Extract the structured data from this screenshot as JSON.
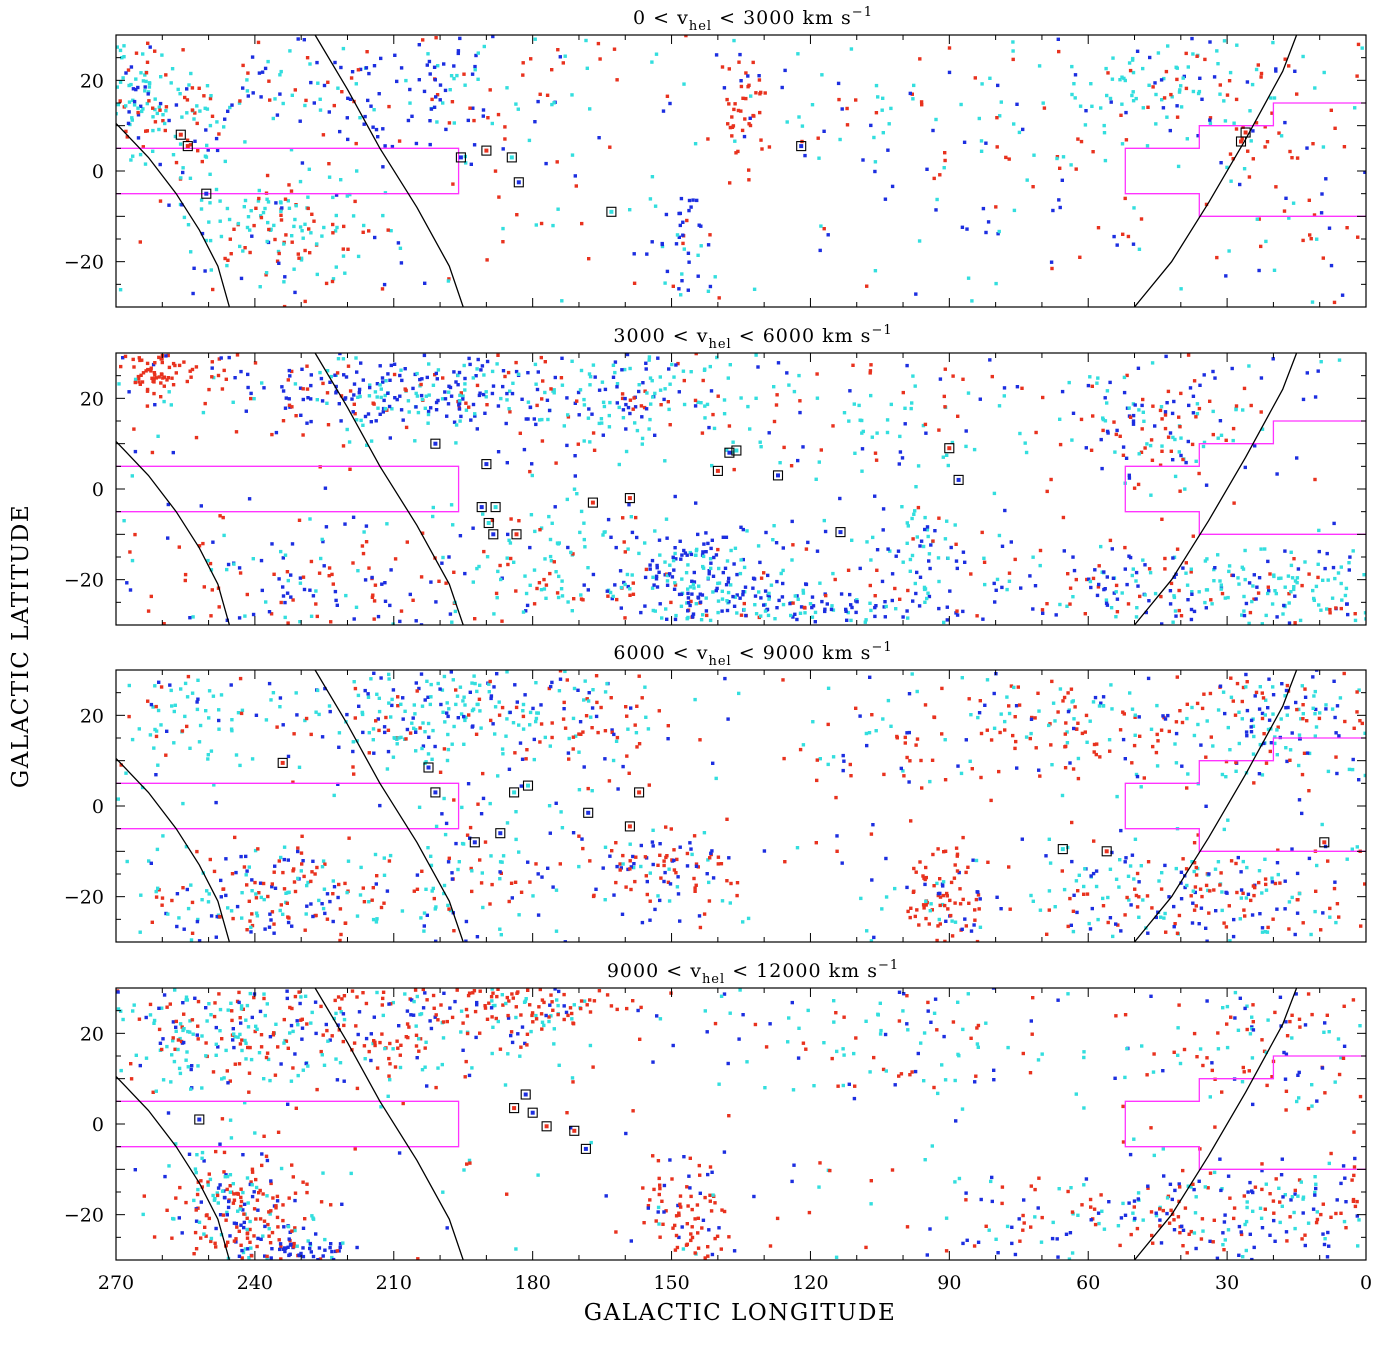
{
  "figure": {
    "xlabel": "GALACTIC LONGITUDE",
    "ylabel": "GALACTIC LATITUDE"
  },
  "colors": {
    "red": "#e8321e",
    "cyan": "#33dede",
    "blue": "#1c2ee0",
    "boundary": "#ff33ff",
    "curve": "#000000",
    "frame": "#000000"
  },
  "chart_data": [
    {
      "type": "scatter",
      "title_prefix": "0 < v",
      "title_sub": "hel",
      "title_suffix": " < 3000 km s",
      "title_sup": "−1",
      "xlim": [
        270,
        0
      ],
      "ylim": [
        -30,
        30
      ],
      "xticks": [
        270,
        240,
        210,
        180,
        150,
        120,
        90,
        60,
        30,
        0
      ],
      "yticks": [
        20,
        0,
        -20
      ],
      "ytick_labels": [
        "20",
        "0",
        "−20"
      ],
      "grid": false,
      "density": "low",
      "clusters": [
        {
          "cx": 265,
          "cy": 16,
          "sx": 5,
          "sy": 6,
          "n": 110,
          "mix": [
            0.25,
            0.6,
            0.15
          ]
        },
        {
          "cx": 252,
          "cy": 12,
          "sx": 5,
          "sy": 8,
          "n": 60,
          "mix": [
            0.3,
            0.5,
            0.2
          ]
        },
        {
          "cx": 232,
          "cy": -13,
          "sx": 10,
          "sy": 7,
          "n": 140,
          "mix": [
            0.35,
            0.55,
            0.1
          ]
        },
        {
          "cx": 225,
          "cy": 18,
          "sx": 12,
          "sy": 6,
          "n": 60,
          "mix": [
            0.15,
            0.35,
            0.5
          ]
        },
        {
          "cx": 200,
          "cy": 20,
          "sx": 12,
          "sy": 8,
          "n": 90,
          "mix": [
            0.1,
            0.3,
            0.6
          ]
        },
        {
          "cx": 134,
          "cy": 12,
          "sx": 3,
          "sy": 7,
          "n": 50,
          "mix": [
            0.85,
            0.05,
            0.1
          ]
        },
        {
          "cx": 147,
          "cy": -16,
          "sx": 4,
          "sy": 8,
          "n": 45,
          "mix": [
            0.05,
            0.35,
            0.6
          ]
        },
        {
          "cx": 45,
          "cy": 18,
          "sx": 14,
          "sy": 6,
          "n": 110,
          "mix": [
            0.15,
            0.75,
            0.1
          ]
        },
        {
          "cx": 20,
          "cy": 5,
          "sx": 12,
          "sy": 14,
          "n": 60,
          "mix": [
            0.7,
            0.15,
            0.15
          ]
        },
        {
          "cx": 100,
          "cy": 14,
          "sx": 15,
          "sy": 6,
          "n": 45,
          "mix": [
            0.3,
            0.6,
            0.1
          ]
        },
        {
          "cx": 75,
          "cy": -5,
          "sx": 20,
          "sy": 12,
          "n": 45,
          "mix": [
            0.35,
            0.25,
            0.4
          ]
        },
        {
          "cx": 180,
          "cy": 8,
          "sx": 12,
          "sy": 14,
          "n": 40,
          "mix": [
            0.45,
            0.35,
            0.2
          ]
        }
      ],
      "background_n": 200,
      "markers": [
        {
          "l": 256,
          "b": 8,
          "c": "red"
        },
        {
          "l": 254.5,
          "b": 5.5,
          "c": "red"
        },
        {
          "l": 250.5,
          "b": -5,
          "c": "blue"
        },
        {
          "l": 195.5,
          "b": 3,
          "c": "blue"
        },
        {
          "l": 190,
          "b": 4.5,
          "c": "red"
        },
        {
          "l": 184.5,
          "b": 3,
          "c": "cyan"
        },
        {
          "l": 183,
          "b": -2.5,
          "c": "blue"
        },
        {
          "l": 163,
          "b": -9,
          "c": "cyan"
        },
        {
          "l": 122,
          "b": 5.5,
          "c": "blue"
        },
        {
          "l": 26,
          "b": 8.5,
          "c": "red"
        },
        {
          "l": 27,
          "b": 6.5,
          "c": "red"
        }
      ]
    },
    {
      "type": "scatter",
      "title_prefix": "3000 < v",
      "title_sub": "hel",
      "title_suffix": " < 6000 km s",
      "title_sup": "−1",
      "xlim": [
        270,
        0
      ],
      "ylim": [
        -30,
        30
      ],
      "xticks": [
        270,
        240,
        210,
        180,
        150,
        120,
        90,
        60,
        30,
        0
      ],
      "yticks": [
        20,
        0,
        -20
      ],
      "ytick_labels": [
        "20",
        "0",
        "−20"
      ],
      "grid": false,
      "density": "high",
      "clusters": [
        {
          "cx": 262,
          "cy": 26,
          "sx": 6,
          "sy": 3,
          "n": 90,
          "mix": [
            0.9,
            0.05,
            0.05
          ]
        },
        {
          "cx": 212,
          "cy": 21,
          "sx": 14,
          "sy": 4,
          "n": 180,
          "mix": [
            0.15,
            0.25,
            0.6
          ]
        },
        {
          "cx": 185,
          "cy": 22,
          "sx": 18,
          "sy": 6,
          "n": 150,
          "mix": [
            0.1,
            0.45,
            0.45
          ]
        },
        {
          "cx": 145,
          "cy": -20,
          "sx": 10,
          "sy": 6,
          "n": 200,
          "mix": [
            0.15,
            0.35,
            0.5
          ]
        },
        {
          "cx": 120,
          "cy": -26,
          "sx": 14,
          "sy": 3,
          "n": 120,
          "mix": [
            0.05,
            0.3,
            0.65
          ]
        },
        {
          "cx": 97,
          "cy": -15,
          "sx": 8,
          "sy": 8,
          "n": 80,
          "mix": [
            0.1,
            0.5,
            0.4
          ]
        },
        {
          "cx": 45,
          "cy": 14,
          "sx": 10,
          "sy": 7,
          "n": 130,
          "mix": [
            0.3,
            0.3,
            0.4
          ]
        },
        {
          "cx": 50,
          "cy": -22,
          "sx": 14,
          "sy": 5,
          "n": 130,
          "mix": [
            0.25,
            0.35,
            0.4
          ]
        },
        {
          "cx": 15,
          "cy": -22,
          "sx": 10,
          "sy": 5,
          "n": 100,
          "mix": [
            0.15,
            0.7,
            0.15
          ]
        },
        {
          "cx": 225,
          "cy": -22,
          "sx": 18,
          "sy": 6,
          "n": 110,
          "mix": [
            0.45,
            0.2,
            0.35
          ]
        },
        {
          "cx": 150,
          "cy": 20,
          "sx": 14,
          "sy": 8,
          "n": 100,
          "mix": [
            0.2,
            0.55,
            0.25
          ]
        },
        {
          "cx": 105,
          "cy": 18,
          "sx": 14,
          "sy": 8,
          "n": 80,
          "mix": [
            0.35,
            0.5,
            0.15
          ]
        },
        {
          "cx": 178,
          "cy": -15,
          "sx": 10,
          "sy": 8,
          "n": 90,
          "mix": [
            0.25,
            0.6,
            0.15
          ]
        }
      ],
      "background_n": 350,
      "markers": [
        {
          "l": 201,
          "b": 10,
          "c": "blue"
        },
        {
          "l": 190,
          "b": 5.5,
          "c": "blue"
        },
        {
          "l": 188,
          "b": -4,
          "c": "cyan"
        },
        {
          "l": 191,
          "b": -4,
          "c": "blue"
        },
        {
          "l": 189.5,
          "b": -7.5,
          "c": "cyan"
        },
        {
          "l": 188.5,
          "b": -10,
          "c": "blue"
        },
        {
          "l": 183.5,
          "b": -10,
          "c": "red"
        },
        {
          "l": 167,
          "b": -3,
          "c": "red"
        },
        {
          "l": 159,
          "b": -2,
          "c": "red"
        },
        {
          "l": 140,
          "b": 4,
          "c": "red"
        },
        {
          "l": 137.5,
          "b": 8,
          "c": "blue"
        },
        {
          "l": 136,
          "b": 8.5,
          "c": "cyan"
        },
        {
          "l": 127,
          "b": 3,
          "c": "blue"
        },
        {
          "l": 113.5,
          "b": -9.5,
          "c": "blue"
        },
        {
          "l": 90,
          "b": 9,
          "c": "red"
        },
        {
          "l": 88,
          "b": 2,
          "c": "blue"
        }
      ]
    },
    {
      "type": "scatter",
      "title_prefix": "6000 < v",
      "title_sub": "hel",
      "title_suffix": " < 9000 km s",
      "title_sup": "−1",
      "xlim": [
        270,
        0
      ],
      "ylim": [
        -30,
        30
      ],
      "xticks": [
        270,
        240,
        210,
        180,
        150,
        120,
        90,
        60,
        30,
        0
      ],
      "yticks": [
        20,
        0,
        -20
      ],
      "ytick_labels": [
        "20",
        "0",
        "−20"
      ],
      "grid": false,
      "density": "high",
      "clusters": [
        {
          "cx": 200,
          "cy": 22,
          "sx": 14,
          "sy": 6,
          "n": 200,
          "mix": [
            0.15,
            0.65,
            0.2
          ]
        },
        {
          "cx": 170,
          "cy": 18,
          "sx": 10,
          "sy": 8,
          "n": 90,
          "mix": [
            0.45,
            0.3,
            0.25
          ]
        },
        {
          "cx": 232,
          "cy": -19,
          "sx": 16,
          "sy": 5,
          "n": 180,
          "mix": [
            0.45,
            0.3,
            0.25
          ]
        },
        {
          "cx": 150,
          "cy": -14,
          "sx": 8,
          "sy": 5,
          "n": 100,
          "mix": [
            0.55,
            0.15,
            0.3
          ]
        },
        {
          "cx": 92,
          "cy": -22,
          "sx": 4,
          "sy": 6,
          "n": 90,
          "mix": [
            0.8,
            0.05,
            0.15
          ]
        },
        {
          "cx": 60,
          "cy": 18,
          "sx": 14,
          "sy": 6,
          "n": 120,
          "mix": [
            0.5,
            0.35,
            0.15
          ]
        },
        {
          "cx": 20,
          "cy": 20,
          "sx": 10,
          "sy": 8,
          "n": 150,
          "mix": [
            0.25,
            0.4,
            0.35
          ]
        },
        {
          "cx": 35,
          "cy": -20,
          "sx": 18,
          "sy": 6,
          "n": 220,
          "mix": [
            0.35,
            0.35,
            0.3
          ]
        },
        {
          "cx": 255,
          "cy": 18,
          "sx": 10,
          "sy": 8,
          "n": 70,
          "mix": [
            0.1,
            0.7,
            0.2
          ]
        },
        {
          "cx": 190,
          "cy": -12,
          "sx": 10,
          "sy": 8,
          "n": 80,
          "mix": [
            0.25,
            0.5,
            0.25
          ]
        },
        {
          "cx": 100,
          "cy": 15,
          "sx": 12,
          "sy": 8,
          "n": 50,
          "mix": [
            0.35,
            0.4,
            0.25
          ]
        }
      ],
      "background_n": 320,
      "markers": [
        {
          "l": 234,
          "b": 9.5,
          "c": "red"
        },
        {
          "l": 202.5,
          "b": 8.5,
          "c": "blue"
        },
        {
          "l": 201,
          "b": 3,
          "c": "blue"
        },
        {
          "l": 181,
          "b": 4.5,
          "c": "cyan"
        },
        {
          "l": 184,
          "b": 3,
          "c": "cyan"
        },
        {
          "l": 168,
          "b": -1.5,
          "c": "blue"
        },
        {
          "l": 157,
          "b": 3,
          "c": "red"
        },
        {
          "l": 159,
          "b": -4.5,
          "c": "red"
        },
        {
          "l": 187,
          "b": -6,
          "c": "blue"
        },
        {
          "l": 192.5,
          "b": -8,
          "c": "blue"
        },
        {
          "l": 65.5,
          "b": -9.5,
          "c": "cyan"
        },
        {
          "l": 56,
          "b": -10,
          "c": "red"
        },
        {
          "l": 9,
          "b": -8,
          "c": "red"
        }
      ]
    },
    {
      "type": "scatter",
      "title_prefix": "9000 < v",
      "title_sub": "hel",
      "title_suffix": " < 12000 km s",
      "title_sup": "−1",
      "xlim": [
        270,
        0
      ],
      "ylim": [
        -30,
        30
      ],
      "xticks": [
        270,
        240,
        210,
        180,
        150,
        120,
        90,
        60,
        30,
        0
      ],
      "yticks": [
        20,
        0,
        -20
      ],
      "ytick_labels": [
        "20",
        "0",
        "−20"
      ],
      "grid": false,
      "density": "high",
      "clusters": [
        {
          "cx": 250,
          "cy": 20,
          "sx": 14,
          "sy": 7,
          "n": 200,
          "mix": [
            0.4,
            0.4,
            0.2
          ]
        },
        {
          "cx": 210,
          "cy": 22,
          "sx": 16,
          "sy": 6,
          "n": 180,
          "mix": [
            0.5,
            0.25,
            0.25
          ]
        },
        {
          "cx": 180,
          "cy": 26,
          "sx": 10,
          "sy": 3,
          "n": 100,
          "mix": [
            0.7,
            0.2,
            0.1
          ]
        },
        {
          "cx": 242,
          "cy": -20,
          "sx": 8,
          "sy": 7,
          "n": 230,
          "mix": [
            0.5,
            0.25,
            0.25
          ]
        },
        {
          "cx": 230,
          "cy": -28,
          "sx": 6,
          "sy": 2,
          "n": 60,
          "mix": [
            0.1,
            0.1,
            0.8
          ]
        },
        {
          "cx": 147,
          "cy": -20,
          "sx": 4,
          "sy": 7,
          "n": 90,
          "mix": [
            0.7,
            0.05,
            0.25
          ]
        },
        {
          "cx": 25,
          "cy": -20,
          "sx": 18,
          "sy": 6,
          "n": 200,
          "mix": [
            0.3,
            0.3,
            0.4
          ]
        },
        {
          "cx": 20,
          "cy": 20,
          "sx": 12,
          "sy": 8,
          "n": 110,
          "mix": [
            0.55,
            0.2,
            0.25
          ]
        },
        {
          "cx": 100,
          "cy": 18,
          "sx": 20,
          "sy": 8,
          "n": 80,
          "mix": [
            0.3,
            0.45,
            0.25
          ]
        },
        {
          "cx": 70,
          "cy": -22,
          "sx": 16,
          "sy": 6,
          "n": 70,
          "mix": [
            0.4,
            0.3,
            0.3
          ]
        }
      ],
      "background_n": 260,
      "markers": [
        {
          "l": 252,
          "b": 1,
          "c": "blue"
        },
        {
          "l": 181.5,
          "b": 6.5,
          "c": "blue"
        },
        {
          "l": 184,
          "b": 3.5,
          "c": "red"
        },
        {
          "l": 180,
          "b": 2.5,
          "c": "blue"
        },
        {
          "l": 177,
          "b": -0.5,
          "c": "red"
        },
        {
          "l": 171,
          "b": -1.5,
          "c": "red"
        },
        {
          "l": 168.5,
          "b": -5.5,
          "c": "blue"
        }
      ]
    }
  ]
}
